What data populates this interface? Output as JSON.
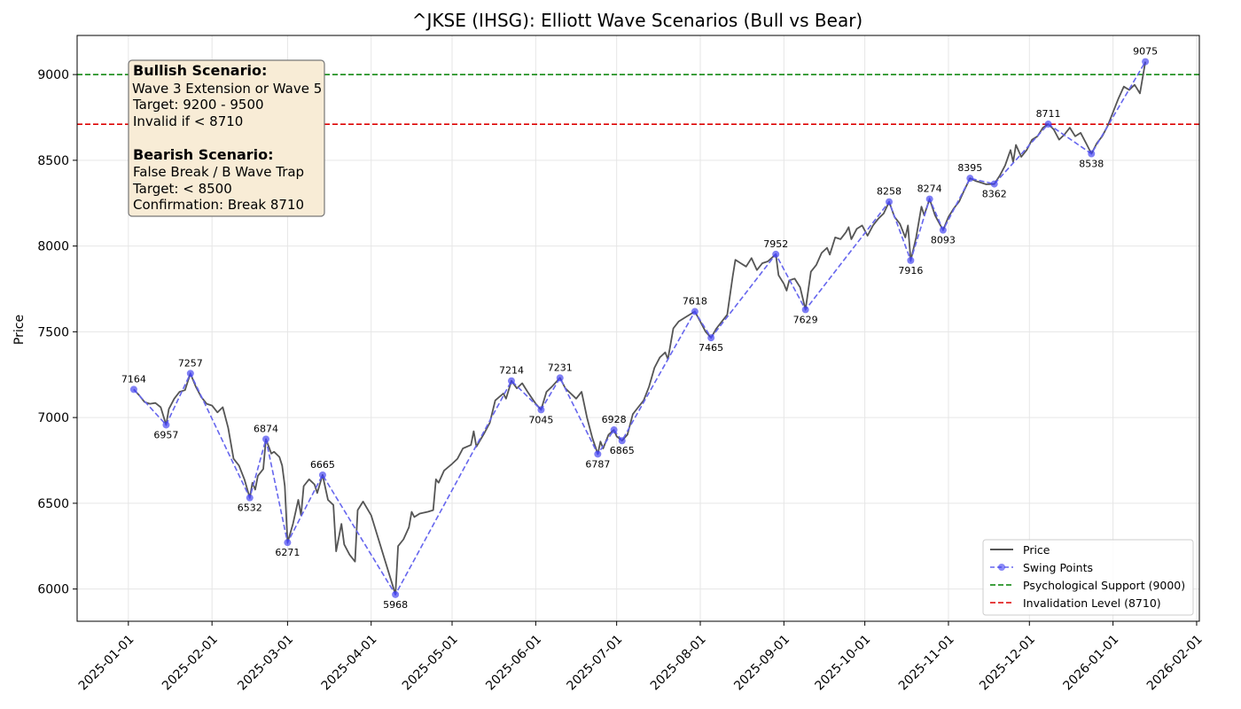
{
  "chart_data": {
    "type": "line",
    "title": "^JKSE (IHSG): Elliott Wave Scenarios (Bull vs Bear)",
    "xlabel": "",
    "ylabel": "Price",
    "x_range": [
      "2024-12-13",
      "2026-02-02"
    ],
    "ylim": [
      5812,
      9228
    ],
    "yticks": [
      6000,
      6500,
      7000,
      7500,
      8000,
      8500,
      9000
    ],
    "xticks": [
      "2025-01-01",
      "2025-02-01",
      "2025-03-01",
      "2025-04-01",
      "2025-05-01",
      "2025-06-01",
      "2025-07-01",
      "2025-08-01",
      "2025-09-01",
      "2025-10-01",
      "2025-11-01",
      "2025-12-01",
      "2026-01-01",
      "2026-02-01"
    ],
    "grid": true,
    "legend_position": "lower-right",
    "colors": {
      "price": "#555555",
      "swing": "#6666ee",
      "swing_marker": "#3b3bf0",
      "support": "#008000",
      "invalidation": "#dd0000",
      "note_bg": "#f8ecd6",
      "note_border": "#777777"
    },
    "series": [
      {
        "name": "Price",
        "points": [
          [
            "2025-01-03",
            7164
          ],
          [
            "2025-01-05",
            7130
          ],
          [
            "2025-01-07",
            7090
          ],
          [
            "2025-01-09",
            7080
          ],
          [
            "2025-01-11",
            7085
          ],
          [
            "2025-01-13",
            7060
          ],
          [
            "2025-01-15",
            6957
          ],
          [
            "2025-01-16",
            7050
          ],
          [
            "2025-01-18",
            7110
          ],
          [
            "2025-01-20",
            7150
          ],
          [
            "2025-01-22",
            7160
          ],
          [
            "2025-01-24",
            7257
          ],
          [
            "2025-01-26",
            7180
          ],
          [
            "2025-01-28",
            7120
          ],
          [
            "2025-01-30",
            7080
          ],
          [
            "2025-02-01",
            7070
          ],
          [
            "2025-02-03",
            7030
          ],
          [
            "2025-02-05",
            7060
          ],
          [
            "2025-02-07",
            6940
          ],
          [
            "2025-02-09",
            6760
          ],
          [
            "2025-02-11",
            6720
          ],
          [
            "2025-02-13",
            6640
          ],
          [
            "2025-02-15",
            6532
          ],
          [
            "2025-02-16",
            6620
          ],
          [
            "2025-02-17",
            6580
          ],
          [
            "2025-02-18",
            6660
          ],
          [
            "2025-02-20",
            6700
          ],
          [
            "2025-02-21",
            6874
          ],
          [
            "2025-02-23",
            6790
          ],
          [
            "2025-02-24",
            6800
          ],
          [
            "2025-02-26",
            6770
          ],
          [
            "2025-02-27",
            6720
          ],
          [
            "2025-02-28",
            6600
          ],
          [
            "2025-03-01",
            6271
          ],
          [
            "2025-03-03",
            6380
          ],
          [
            "2025-03-05",
            6520
          ],
          [
            "2025-03-06",
            6430
          ],
          [
            "2025-03-07",
            6600
          ],
          [
            "2025-03-09",
            6640
          ],
          [
            "2025-03-11",
            6610
          ],
          [
            "2025-03-12",
            6560
          ],
          [
            "2025-03-14",
            6665
          ],
          [
            "2025-03-16",
            6520
          ],
          [
            "2025-03-18",
            6490
          ],
          [
            "2025-03-19",
            6220
          ],
          [
            "2025-03-21",
            6380
          ],
          [
            "2025-03-22",
            6260
          ],
          [
            "2025-03-24",
            6200
          ],
          [
            "2025-03-26",
            6160
          ],
          [
            "2025-03-27",
            6460
          ],
          [
            "2025-03-29",
            6510
          ],
          [
            "2025-04-01",
            6430
          ],
          [
            "2025-04-10",
            5968
          ],
          [
            "2025-04-11",
            6250
          ],
          [
            "2025-04-13",
            6290
          ],
          [
            "2025-04-15",
            6360
          ],
          [
            "2025-04-16",
            6450
          ],
          [
            "2025-04-17",
            6420
          ],
          [
            "2025-04-19",
            6440
          ],
          [
            "2025-04-22",
            6450
          ],
          [
            "2025-04-24",
            6460
          ],
          [
            "2025-04-25",
            6640
          ],
          [
            "2025-04-26",
            6620
          ],
          [
            "2025-04-28",
            6690
          ],
          [
            "2025-05-01",
            6730
          ],
          [
            "2025-05-03",
            6760
          ],
          [
            "2025-05-05",
            6820
          ],
          [
            "2025-05-08",
            6840
          ],
          [
            "2025-05-09",
            6920
          ],
          [
            "2025-05-10",
            6830
          ],
          [
            "2025-05-13",
            6910
          ],
          [
            "2025-05-15",
            6970
          ],
          [
            "2025-05-17",
            7100
          ],
          [
            "2025-05-20",
            7140
          ],
          [
            "2025-05-21",
            7110
          ],
          [
            "2025-05-23",
            7214
          ],
          [
            "2025-05-25",
            7170
          ],
          [
            "2025-05-27",
            7200
          ],
          [
            "2025-05-29",
            7150
          ],
          [
            "2025-06-01",
            7080
          ],
          [
            "2025-06-03",
            7045
          ],
          [
            "2025-06-05",
            7150
          ],
          [
            "2025-06-07",
            7180
          ],
          [
            "2025-06-10",
            7231
          ],
          [
            "2025-06-12",
            7170
          ],
          [
            "2025-06-14",
            7140
          ],
          [
            "2025-06-16",
            7110
          ],
          [
            "2025-06-18",
            7150
          ],
          [
            "2025-06-20",
            7000
          ],
          [
            "2025-06-22",
            6880
          ],
          [
            "2025-06-24",
            6787
          ],
          [
            "2025-06-25",
            6860
          ],
          [
            "2025-06-26",
            6820
          ],
          [
            "2025-06-28",
            6900
          ],
          [
            "2025-06-30",
            6928
          ],
          [
            "2025-07-01",
            6890
          ],
          [
            "2025-07-03",
            6865
          ],
          [
            "2025-07-05",
            6900
          ],
          [
            "2025-07-07",
            7020
          ],
          [
            "2025-07-09",
            7060
          ],
          [
            "2025-07-11",
            7100
          ],
          [
            "2025-07-13",
            7180
          ],
          [
            "2025-07-15",
            7290
          ],
          [
            "2025-07-17",
            7350
          ],
          [
            "2025-07-19",
            7380
          ],
          [
            "2025-07-20",
            7340
          ],
          [
            "2025-07-22",
            7520
          ],
          [
            "2025-07-24",
            7560
          ],
          [
            "2025-07-27",
            7590
          ],
          [
            "2025-07-30",
            7618
          ],
          [
            "2025-08-01",
            7560
          ],
          [
            "2025-08-03",
            7500
          ],
          [
            "2025-08-05",
            7465
          ],
          [
            "2025-08-07",
            7520
          ],
          [
            "2025-08-09",
            7560
          ],
          [
            "2025-08-11",
            7600
          ],
          [
            "2025-08-13",
            7820
          ],
          [
            "2025-08-14",
            7920
          ],
          [
            "2025-08-16",
            7900
          ],
          [
            "2025-08-18",
            7880
          ],
          [
            "2025-08-20",
            7930
          ],
          [
            "2025-08-22",
            7860
          ],
          [
            "2025-08-24",
            7900
          ],
          [
            "2025-08-26",
            7910
          ],
          [
            "2025-08-29",
            7952
          ],
          [
            "2025-08-30",
            7830
          ],
          [
            "2025-09-01",
            7780
          ],
          [
            "2025-09-02",
            7740
          ],
          [
            "2025-09-03",
            7800
          ],
          [
            "2025-09-05",
            7810
          ],
          [
            "2025-09-07",
            7760
          ],
          [
            "2025-09-09",
            7629
          ],
          [
            "2025-09-11",
            7850
          ],
          [
            "2025-09-13",
            7890
          ],
          [
            "2025-09-15",
            7960
          ],
          [
            "2025-09-17",
            7990
          ],
          [
            "2025-09-18",
            7950
          ],
          [
            "2025-09-20",
            8050
          ],
          [
            "2025-09-22",
            8040
          ],
          [
            "2025-09-24",
            8080
          ],
          [
            "2025-09-25",
            8110
          ],
          [
            "2025-09-26",
            8040
          ],
          [
            "2025-09-28",
            8100
          ],
          [
            "2025-09-30",
            8120
          ],
          [
            "2025-10-02",
            8060
          ],
          [
            "2025-10-04",
            8120
          ],
          [
            "2025-10-06",
            8160
          ],
          [
            "2025-10-08",
            8190
          ],
          [
            "2025-10-10",
            8258
          ],
          [
            "2025-10-12",
            8170
          ],
          [
            "2025-10-14",
            8130
          ],
          [
            "2025-10-16",
            8050
          ],
          [
            "2025-10-17",
            8120
          ],
          [
            "2025-10-18",
            7916
          ],
          [
            "2025-10-20",
            8050
          ],
          [
            "2025-10-22",
            8230
          ],
          [
            "2025-10-23",
            8180
          ],
          [
            "2025-10-25",
            8274
          ],
          [
            "2025-10-27",
            8180
          ],
          [
            "2025-10-28",
            8150
          ],
          [
            "2025-10-30",
            8093
          ],
          [
            "2025-11-01",
            8170
          ],
          [
            "2025-11-03",
            8220
          ],
          [
            "2025-11-05",
            8260
          ],
          [
            "2025-11-07",
            8330
          ],
          [
            "2025-11-09",
            8395
          ],
          [
            "2025-11-11",
            8380
          ],
          [
            "2025-11-13",
            8370
          ],
          [
            "2025-11-15",
            8360
          ],
          [
            "2025-11-18",
            8362
          ],
          [
            "2025-11-20",
            8410
          ],
          [
            "2025-11-22",
            8470
          ],
          [
            "2025-11-24",
            8560
          ],
          [
            "2025-11-25",
            8490
          ],
          [
            "2025-11-26",
            8590
          ],
          [
            "2025-11-28",
            8520
          ],
          [
            "2025-11-30",
            8560
          ],
          [
            "2025-12-02",
            8620
          ],
          [
            "2025-12-04",
            8640
          ],
          [
            "2025-12-06",
            8690
          ],
          [
            "2025-12-08",
            8711
          ],
          [
            "2025-12-10",
            8680
          ],
          [
            "2025-12-12",
            8620
          ],
          [
            "2025-12-14",
            8650
          ],
          [
            "2025-12-16",
            8690
          ],
          [
            "2025-12-18",
            8640
          ],
          [
            "2025-12-20",
            8660
          ],
          [
            "2025-12-22",
            8600
          ],
          [
            "2025-12-24",
            8538
          ],
          [
            "2025-12-26",
            8600
          ],
          [
            "2025-12-28",
            8640
          ],
          [
            "2025-12-30",
            8700
          ],
          [
            "2026-01-01",
            8780
          ],
          [
            "2026-01-03",
            8860
          ],
          [
            "2026-01-05",
            8930
          ],
          [
            "2026-01-07",
            8910
          ],
          [
            "2026-01-09",
            8940
          ],
          [
            "2026-01-11",
            8890
          ],
          [
            "2026-01-13",
            9075
          ]
        ]
      },
      {
        "name": "Swing Points",
        "points": [
          [
            "2025-01-03",
            7164
          ],
          [
            "2025-01-15",
            6957
          ],
          [
            "2025-01-24",
            7257
          ],
          [
            "2025-02-15",
            6532
          ],
          [
            "2025-02-21",
            6874
          ],
          [
            "2025-03-01",
            6271
          ],
          [
            "2025-03-14",
            6665
          ],
          [
            "2025-04-10",
            5968
          ],
          [
            "2025-05-23",
            7214
          ],
          [
            "2025-06-03",
            7045
          ],
          [
            "2025-06-10",
            7231
          ],
          [
            "2025-06-24",
            6787
          ],
          [
            "2025-06-30",
            6928
          ],
          [
            "2025-07-03",
            6865
          ],
          [
            "2025-07-30",
            7618
          ],
          [
            "2025-08-05",
            7465
          ],
          [
            "2025-08-29",
            7952
          ],
          [
            "2025-09-09",
            7629
          ],
          [
            "2025-10-10",
            8258
          ],
          [
            "2025-10-18",
            7916
          ],
          [
            "2025-10-25",
            8274
          ],
          [
            "2025-10-30",
            8093
          ],
          [
            "2025-11-09",
            8395
          ],
          [
            "2025-11-18",
            8362
          ],
          [
            "2025-12-08",
            8711
          ],
          [
            "2025-12-24",
            8538
          ],
          [
            "2026-01-13",
            9075
          ]
        ],
        "labels": [
          "7164",
          "6957",
          "7257",
          "6532",
          "6874",
          "6271",
          "6665",
          "5968",
          "7214",
          "7045",
          "7231",
          "6787",
          "6928",
          "6865",
          "7618",
          "7465",
          "7952",
          "7629",
          "8258",
          "7916",
          "8274",
          "8093",
          "8395",
          "8362",
          "8711",
          "8538",
          "9075"
        ]
      }
    ],
    "hlines": [
      {
        "name": "Psychological Support (9000)",
        "y": 9000
      },
      {
        "name": "Invalidation Level (8710)",
        "y": 8710
      }
    ],
    "legend": [
      "Price",
      "Swing Points",
      "Psychological Support (9000)",
      "Invalidation Level (8710)"
    ],
    "annotation": {
      "bull_title": "Bullish Scenario:",
      "bull_lines": [
        "Wave 3 Extension or Wave 5",
        "Target: 9200 - 9500",
        "Invalid if < 8710"
      ],
      "bear_title": "Bearish Scenario:",
      "bear_lines": [
        "False Break / B Wave Trap",
        "Target: < 8500",
        "Confirmation: Break 8710"
      ]
    }
  }
}
